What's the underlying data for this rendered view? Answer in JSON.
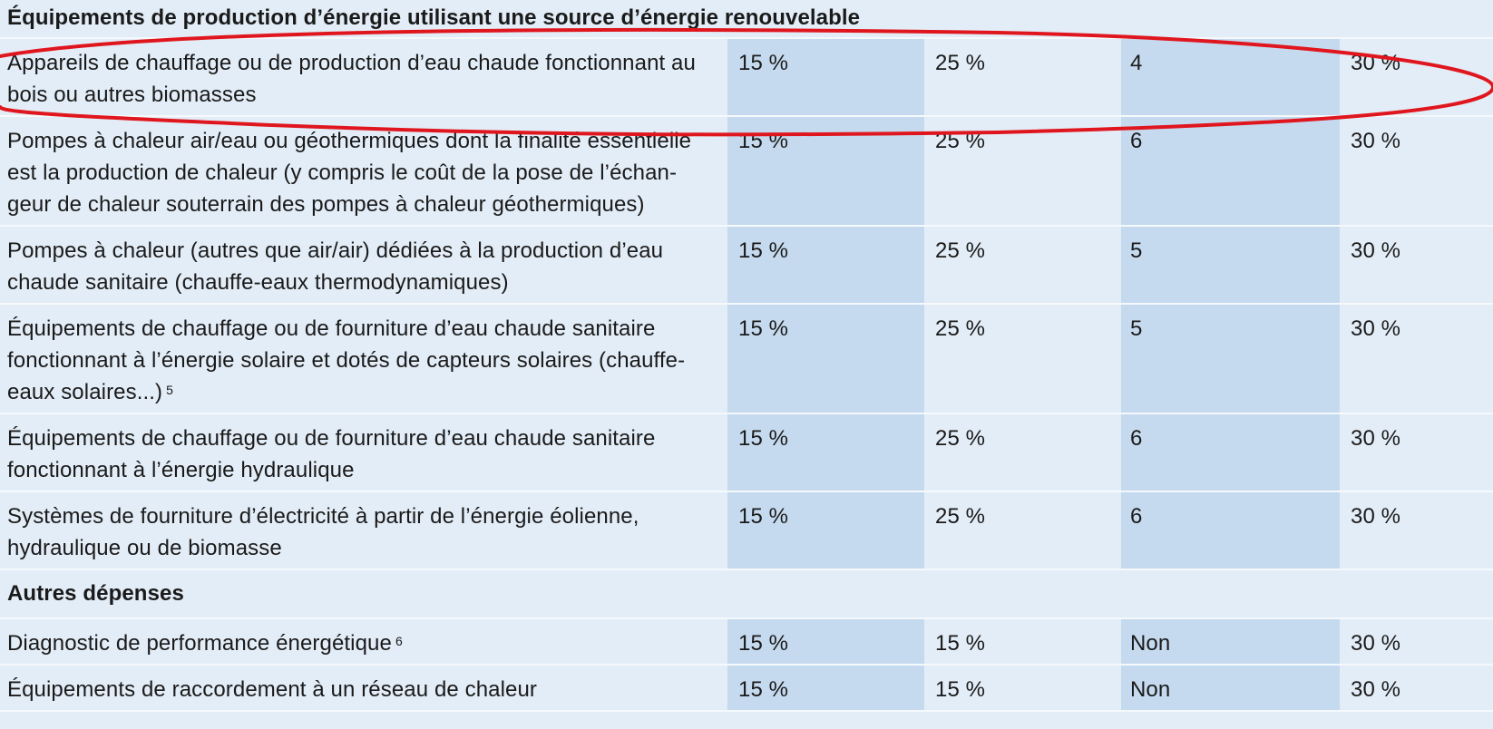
{
  "sections": [
    {
      "title": "Équipements de production d’énergie utilisant une source d’énergie renouvelable",
      "rows": [
        {
          "label": "Appareils de chauffage ou de production d’eau chaude fonctionnant au bois ou autres biomasses",
          "sup": "",
          "c1": "15 %",
          "c2": "25 %",
          "c3": "4",
          "c4": "30 %"
        },
        {
          "label": "Pompes à chaleur air/eau ou géothermiques dont la finalité essentielle est la production de chaleur (y compris le coût de la pose de l’échan-geur de chaleur souterrain des pompes à chaleur géothermiques)",
          "sup": "",
          "c1": "15 %",
          "c2": "25 %",
          "c3": "6",
          "c4": "30 %"
        },
        {
          "label": "Pompes à chaleur (autres que air/air) dédiées à la production d’eau chaude sanitaire (chauffe-eaux thermodynamiques)",
          "sup": "",
          "c1": "15 %",
          "c2": "25 %",
          "c3": "5",
          "c4": "30 %"
        },
        {
          "label": "Équipements de chauffage ou de fourniture d’eau chaude sanitaire fonctionnant à l’énergie solaire et dotés de capteurs solaires (chauffe-eaux solaires...)",
          "sup": "5",
          "c1": "15 %",
          "c2": "25 %",
          "c3": "5",
          "c4": "30 %"
        },
        {
          "label": "Équipements de chauffage ou de fourniture d’eau chaude sanitaire fonctionnant à l’énergie hydraulique",
          "sup": "",
          "c1": "15 %",
          "c2": "25 %",
          "c3": "6",
          "c4": "30 %"
        },
        {
          "label": "Systèmes de fourniture d’électricité à partir de l’énergie éolienne, hydraulique ou de biomasse",
          "sup": "",
          "c1": "15 %",
          "c2": "25 %",
          "c3": "6",
          "c4": "30 %"
        }
      ]
    },
    {
      "title": "Autres dépenses",
      "rows": [
        {
          "label": "Diagnostic de performance énergétique",
          "sup": "6",
          "c1": "15 %",
          "c2": "15 %",
          "c3": "Non",
          "c4": "30 %"
        },
        {
          "label": "Équipements de raccordement à un réseau de chaleur",
          "sup": "",
          "c1": "15 %",
          "c2": "15 %",
          "c3": "Non",
          "c4": "30 %"
        }
      ]
    }
  ],
  "annotation": {
    "shape": "ellipse",
    "color": "#e0161e",
    "highlighted_row": "Appareils de chauffage ou de production d’eau chaude fonctionnant au bois ou autres biomasses"
  }
}
